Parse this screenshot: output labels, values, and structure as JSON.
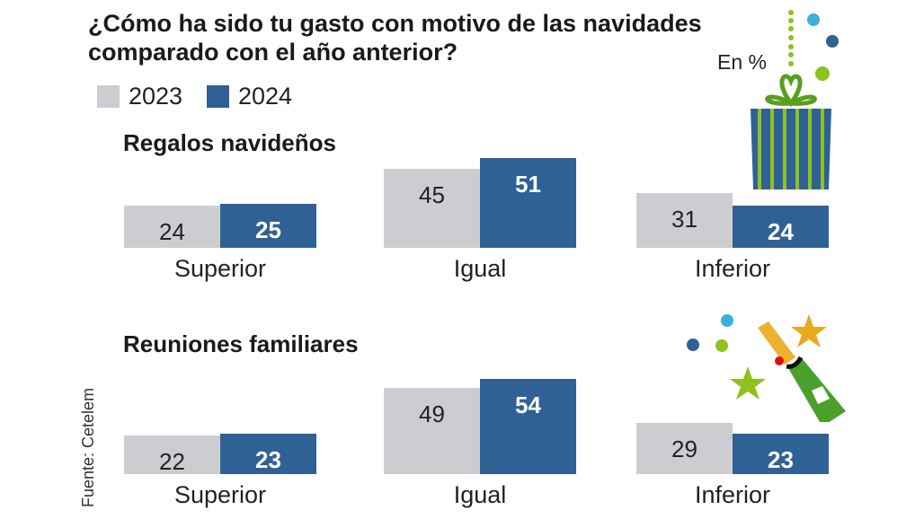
{
  "title_lines": [
    "¿Cómo ha sido tu gasto con motivo de las navidades",
    "comparado con el año anterior?"
  ],
  "unit": "En %",
  "source": "Fuente: Cetelem",
  "colors": {
    "2023": "#cbcdd0",
    "2024": "#2f6195"
  },
  "chart_data": [
    {
      "type": "bar",
      "title": "Regalos navideños",
      "categories": [
        "Superior",
        "Igual",
        "Inferior"
      ],
      "series": [
        {
          "name": "2023",
          "values": [
            24,
            45,
            31
          ]
        },
        {
          "name": "2024",
          "values": [
            25,
            51,
            24
          ]
        }
      ]
    },
    {
      "type": "bar",
      "title": "Reuniones familiares",
      "categories": [
        "Superior",
        "Igual",
        "Inferior"
      ],
      "series": [
        {
          "name": "2023",
          "values": [
            22,
            49,
            29
          ]
        },
        {
          "name": "2024",
          "values": [
            23,
            54,
            23
          ]
        }
      ]
    }
  ],
  "legend": [
    "2023",
    "2024"
  ]
}
